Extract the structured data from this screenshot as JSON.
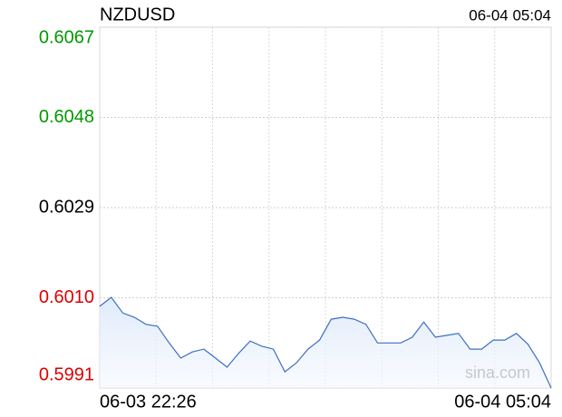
{
  "chart_data": {
    "type": "line",
    "title": "NZDUSD",
    "timestamp": "06-04 05:04",
    "watermark": "sina.com",
    "categories": [
      "06-03 22:26",
      null,
      null,
      null,
      null,
      null,
      null,
      null,
      null,
      null,
      null,
      null,
      null,
      null,
      null,
      null,
      null,
      null,
      null,
      null,
      null,
      null,
      null,
      null,
      null,
      null,
      null,
      null,
      null,
      null,
      null,
      null,
      null,
      null,
      null,
      null,
      null,
      null,
      null,
      "06-04 05:04"
    ],
    "series": [
      {
        "name": "NZDUSD",
        "color": "#3d6fc2",
        "values": [
          0.60082,
          0.60101,
          0.60068,
          0.60059,
          0.60044,
          0.6004,
          0.60005,
          0.59973,
          0.59986,
          0.59992,
          0.59973,
          0.59954,
          0.59983,
          0.60009,
          0.59998,
          0.59992,
          0.59944,
          0.59963,
          0.59992,
          0.60011,
          0.60055,
          0.60059,
          0.60055,
          0.60044,
          0.60005,
          0.60005,
          0.60005,
          0.60017,
          0.60049,
          0.60017,
          0.60021,
          0.60025,
          0.59992,
          0.59992,
          0.60011,
          0.60011,
          0.60025,
          0.60002,
          0.59963,
          0.5991
        ]
      }
    ],
    "ylim": [
      0.5991,
      0.6067
    ],
    "yticks": [
      {
        "value": 0.5991,
        "label": "0.5991"
      },
      {
        "value": 0.601,
        "label": "0.6010"
      },
      {
        "value": 0.6029,
        "label": "0.6029"
      },
      {
        "value": 0.6048,
        "label": "0.6048"
      },
      {
        "value": 0.6067,
        "label": "0.6067"
      }
    ],
    "ytick_colors": [
      "#e00000",
      "#e00000",
      "#000000",
      "#009900",
      "#009900"
    ],
    "x_divisions": 8,
    "grid": true
  }
}
